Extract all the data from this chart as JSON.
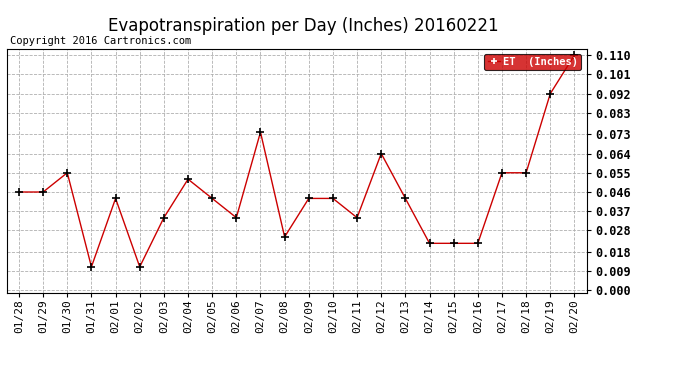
{
  "title": "Evapotranspiration per Day (Inches) 20160221",
  "copyright": "Copyright 2016 Cartronics.com",
  "legend_label": "ET  (Inches)",
  "dates": [
    "01/28",
    "01/29",
    "01/30",
    "01/31",
    "02/01",
    "02/02",
    "02/03",
    "02/04",
    "02/05",
    "02/06",
    "02/07",
    "02/08",
    "02/09",
    "02/10",
    "02/11",
    "02/12",
    "02/13",
    "02/14",
    "02/15",
    "02/16",
    "02/17",
    "02/18",
    "02/19",
    "02/20"
  ],
  "values": [
    0.046,
    0.046,
    0.055,
    0.011,
    0.043,
    0.011,
    0.034,
    0.052,
    0.043,
    0.034,
    0.074,
    0.025,
    0.043,
    0.043,
    0.034,
    0.064,
    0.043,
    0.022,
    0.022,
    0.022,
    0.055,
    0.055,
    0.092,
    0.11
  ],
  "ylim": [
    -0.001,
    0.113
  ],
  "yticks": [
    0.0,
    0.009,
    0.018,
    0.028,
    0.037,
    0.046,
    0.055,
    0.064,
    0.073,
    0.083,
    0.092,
    0.101,
    0.11
  ],
  "line_color": "#cc0000",
  "marker_color": "#000000",
  "legend_bg": "#cc0000",
  "legend_fg": "#ffffff",
  "bg_color": "#ffffff",
  "grid_color": "#b0b0b0",
  "title_fontsize": 12,
  "tick_fontsize": 8,
  "copyright_fontsize": 7.5
}
